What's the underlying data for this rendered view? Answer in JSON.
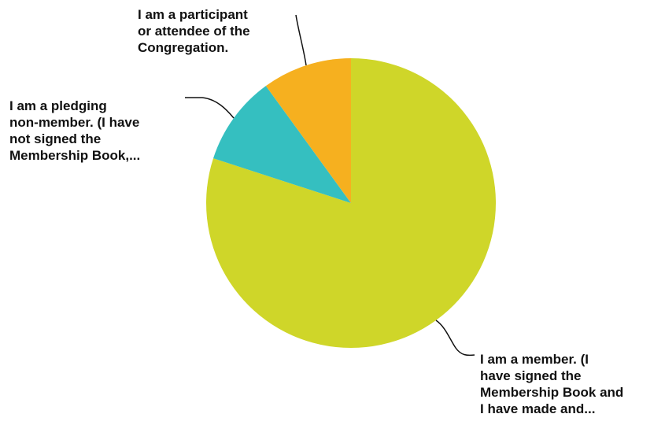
{
  "chart_data": {
    "type": "pie",
    "start": "12 o'clock, clockwise",
    "slices": [
      {
        "lines": [
          "I am a member. (I",
          "have signed the",
          "Membership Book and",
          "I have made and..."
        ],
        "value": 80,
        "color": "#cfd629"
      },
      {
        "lines": [
          "I am a pledging",
          "non-member. (I have",
          "not signed the",
          "Membership Book,..."
        ],
        "value": 10,
        "color": "#35bfc0"
      },
      {
        "lines": [
          "I am a participant",
          "or attendee of the",
          "Congregation."
        ],
        "value": 10,
        "color": "#f6b01f"
      }
    ]
  }
}
